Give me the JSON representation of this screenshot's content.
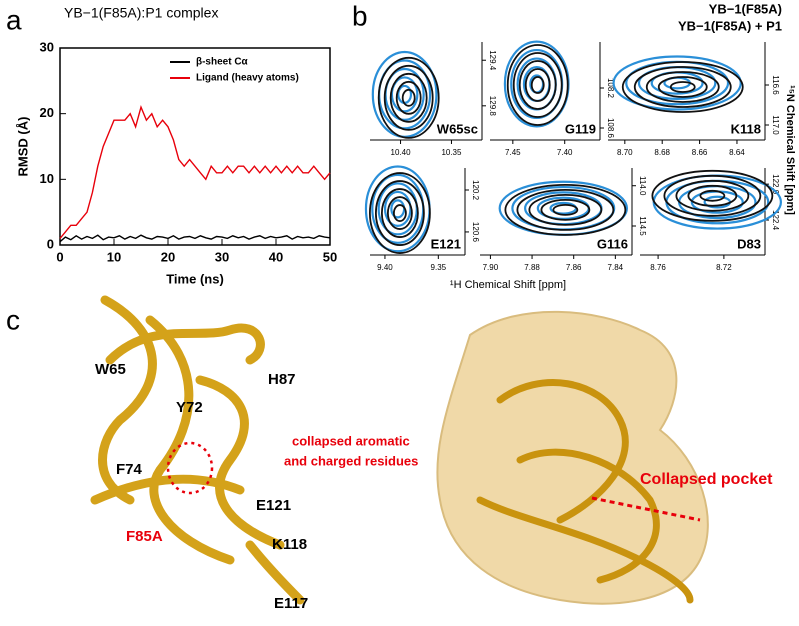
{
  "panel_labels": [
    "a",
    "b",
    "c"
  ],
  "chart_data": [
    {
      "type": "line",
      "title": "YB−1(F85A):P1 complex",
      "x_label": "Time (ns)",
      "y_label": "RMSD (Å)",
      "xlim": [
        0,
        50
      ],
      "ylim": [
        0,
        30
      ],
      "xticks": [
        0,
        10,
        20,
        30,
        40,
        50
      ],
      "yticks": [
        0,
        10,
        20,
        30
      ],
      "legend": "upper right",
      "x": [
        0,
        1,
        2,
        3,
        4,
        5,
        6,
        7,
        8,
        9,
        10,
        11,
        12,
        13,
        14,
        15,
        16,
        17,
        18,
        19,
        20,
        21,
        22,
        23,
        24,
        25,
        26,
        27,
        28,
        29,
        30,
        31,
        32,
        33,
        34,
        35,
        36,
        37,
        38,
        39,
        40,
        41,
        42,
        43,
        44,
        45,
        46,
        47,
        48,
        49,
        50
      ],
      "series": [
        {
          "name": "β-sheet Cα",
          "color": "#000000",
          "values": [
            0.5,
            1.2,
            0.8,
            1.4,
            0.9,
            1.3,
            1.0,
            1.5,
            0.8,
            1.2,
            1.1,
            1.4,
            0.9,
            1.3,
            1.0,
            1.5,
            1.1,
            0.9,
            1.3,
            1.2,
            1.0,
            1.4,
            0.9,
            1.2,
            1.3,
            1.0,
            1.4,
            1.1,
            0.9,
            1.3,
            1.2,
            1.0,
            1.4,
            1.1,
            1.3,
            0.9,
            1.2,
            1.4,
            1.0,
            1.3,
            1.1,
            1.2,
            1.4,
            0.9,
            1.3,
            1.1,
            1.2,
            1.0,
            1.4,
            1.2,
            1.1
          ]
        },
        {
          "name": "Ligand (heavy atoms)",
          "color": "#e8000b",
          "values": [
            1,
            2,
            3,
            3,
            4,
            5,
            8,
            12,
            15,
            17,
            19,
            19,
            19,
            20,
            18,
            21,
            19,
            20,
            18,
            19,
            18,
            16,
            13,
            12,
            13,
            12,
            11,
            10,
            12,
            11,
            11,
            12,
            11,
            12,
            12,
            11,
            12,
            11,
            12,
            11,
            12,
            11,
            12,
            11,
            12,
            11,
            11,
            12,
            11,
            10,
            11
          ]
        }
      ]
    },
    {
      "type": "contour",
      "label": "W65sc",
      "xlim": [
        10.43,
        10.32
      ],
      "ylim": [
        130.1,
        129.24
      ],
      "xticks": [
        {
          "value": 10.4,
          "label": "10.40"
        },
        10.35
      ],
      "yticks": [
        129.4,
        129.8
      ],
      "peaks": [
        [
          10.392,
          129.73
        ],
        [
          10.396,
          129.7
        ]
      ]
    },
    {
      "type": "contour",
      "label": "G119",
      "xlim": [
        7.472,
        7.366
      ],
      "ylim": [
        108.72,
        107.74
      ],
      "xticks": [
        7.45,
        {
          "value": 7.4,
          "label": "7.40"
        }
      ],
      "yticks": [
        108.2,
        108.6
      ],
      "peaks": [
        [
          7.426,
          108.17
        ],
        [
          7.427,
          108.16
        ]
      ]
    },
    {
      "type": "contour",
      "label": "K118",
      "xlim": [
        8.709,
        8.625
      ],
      "ylim": [
        117.15,
        116.17
      ],
      "xticks": [
        {
          "value": 8.7,
          "label": "8.70"
        },
        8.68,
        8.66,
        8.64
      ],
      "yticks": [
        116.6,
        {
          "value": 117,
          "label": "117.0"
        }
      ],
      "peaks": [
        [
          8.669,
          116.62
        ],
        [
          8.672,
          116.58
        ]
      ]
    },
    {
      "type": "contour",
      "label": "E121",
      "xlim": [
        9.414,
        9.325
      ],
      "ylim": [
        120.82,
        119.99
      ],
      "xticks": [
        {
          "value": 9.4,
          "label": "9.40"
        },
        9.35
      ],
      "yticks": [
        120.2,
        120.6
      ],
      "peaks": [
        [
          9.386,
          120.42
        ],
        [
          9.388,
          120.38
        ]
      ]
    },
    {
      "type": "contour",
      "label": "G116",
      "xlim": [
        7.905,
        7.832
      ],
      "ylim": [
        114.86,
        113.78
      ],
      "xticks": [
        {
          "value": 7.9,
          "label": "7.90"
        },
        7.88,
        7.86,
        7.84
      ],
      "yticks": [
        {
          "value": 114,
          "label": "114.0"
        },
        114.5
      ],
      "peaks": [
        [
          7.864,
          114.3
        ],
        [
          7.865,
          114.28
        ]
      ]
    },
    {
      "type": "contour",
      "label": "D83",
      "xlim": [
        8.771,
        8.695
      ],
      "ylim": [
        122.79,
        121.82
      ],
      "xticks": [
        8.76,
        8.72
      ],
      "yticks": [
        {
          "value": 122,
          "label": "122.0"
        },
        122.4
      ],
      "peaks": [
        [
          8.727,
          122.13
        ],
        [
          8.724,
          122.2
        ]
      ]
    }
  ],
  "nmr": {
    "x_label": "¹H Chemical Shift [ppm]",
    "y_label": "¹⁵N Chemical Shift [ppm]",
    "legend": [
      {
        "name": "YB−1(F85A)",
        "color": "#111111"
      },
      {
        "name": "YB−1(F85A) + P1",
        "color": "#1a1aa0"
      }
    ],
    "contour_colors": [
      "#111111",
      "#2a8fd8"
    ]
  },
  "structure": {
    "residues": [
      "W65",
      "Y72",
      "H87",
      "F74",
      "E121",
      "K118",
      "E117"
    ],
    "mutation": "F85A",
    "note": [
      "collapsed aromatic",
      "and charged residues"
    ],
    "pocket": "Collapsed pocket"
  }
}
